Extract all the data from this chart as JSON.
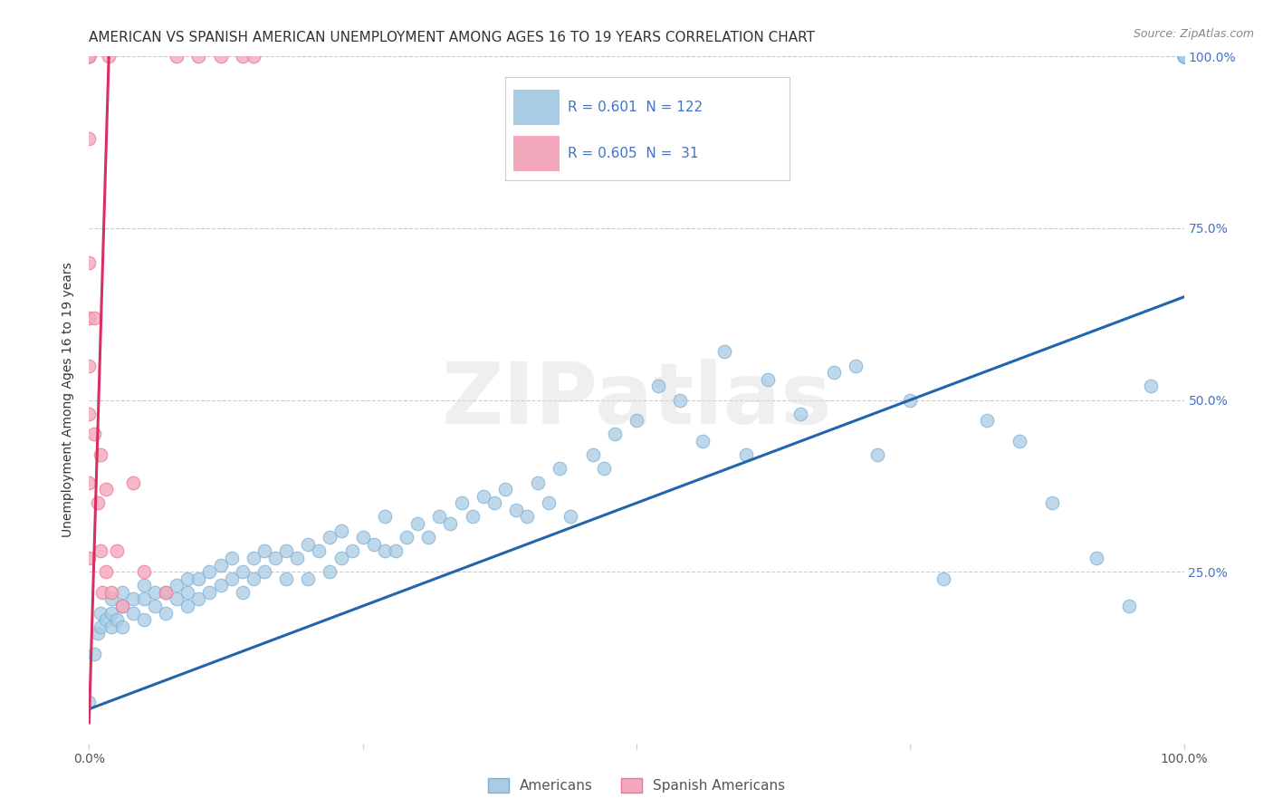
{
  "title": "AMERICAN VS SPANISH AMERICAN UNEMPLOYMENT AMONG AGES 16 TO 19 YEARS CORRELATION CHART",
  "source": "Source: ZipAtlas.com",
  "ylabel": "Unemployment Among Ages 16 to 19 years",
  "xlim": [
    0.0,
    1.0
  ],
  "ylim": [
    0.0,
    1.0
  ],
  "blue_R": 0.601,
  "blue_N": 122,
  "pink_R": 0.605,
  "pink_N": 31,
  "blue_color": "#a8cce4",
  "pink_color": "#f4a8bb",
  "blue_edge_color": "#7bafd4",
  "pink_edge_color": "#e87898",
  "blue_line_color": "#2166ac",
  "pink_line_color": "#d63060",
  "legend_label_blue": "Americans",
  "legend_label_pink": "Spanish Americans",
  "watermark_text": "ZIPatlas",
  "background_color": "#ffffff",
  "grid_color": "#cccccc",
  "title_color": "#333333",
  "source_color": "#888888",
  "tick_color": "#555555",
  "right_tick_color": "#4472c4",
  "legend_text_color": "#4472c4",
  "blue_line_intercept": 0.05,
  "blue_line_slope": 0.6,
  "pink_line_x0": 0.0,
  "pink_line_y0": 0.03,
  "pink_line_x1": 0.018,
  "pink_line_y1": 1.0,
  "blue_x": [
    0.0,
    0.005,
    0.008,
    0.01,
    0.01,
    0.015,
    0.02,
    0.02,
    0.02,
    0.025,
    0.03,
    0.03,
    0.03,
    0.04,
    0.04,
    0.05,
    0.05,
    0.05,
    0.06,
    0.06,
    0.07,
    0.07,
    0.08,
    0.08,
    0.09,
    0.09,
    0.09,
    0.1,
    0.1,
    0.11,
    0.11,
    0.12,
    0.12,
    0.13,
    0.13,
    0.14,
    0.14,
    0.15,
    0.15,
    0.16,
    0.16,
    0.17,
    0.18,
    0.18,
    0.19,
    0.2,
    0.2,
    0.21,
    0.22,
    0.22,
    0.23,
    0.23,
    0.24,
    0.25,
    0.26,
    0.27,
    0.27,
    0.28,
    0.29,
    0.3,
    0.31,
    0.32,
    0.33,
    0.34,
    0.35,
    0.36,
    0.37,
    0.38,
    0.39,
    0.4,
    0.41,
    0.42,
    0.43,
    0.44,
    0.46,
    0.47,
    0.48,
    0.5,
    0.52,
    0.54,
    0.56,
    0.58,
    0.6,
    0.62,
    0.65,
    0.68,
    0.7,
    0.72,
    0.75,
    0.78,
    0.82,
    0.85,
    0.88,
    0.92,
    0.95,
    0.97,
    1.0,
    1.0,
    1.0,
    1.0,
    1.0,
    1.0,
    1.0,
    1.0,
    1.0,
    1.0,
    1.0,
    1.0,
    1.0,
    1.0,
    1.0,
    1.0,
    1.0,
    1.0,
    1.0,
    1.0,
    1.0,
    1.0,
    1.0,
    1.0,
    1.0,
    1.0
  ],
  "blue_y": [
    0.06,
    0.13,
    0.16,
    0.17,
    0.19,
    0.18,
    0.17,
    0.19,
    0.21,
    0.18,
    0.17,
    0.2,
    0.22,
    0.19,
    0.21,
    0.18,
    0.21,
    0.23,
    0.2,
    0.22,
    0.19,
    0.22,
    0.21,
    0.23,
    0.2,
    0.22,
    0.24,
    0.21,
    0.24,
    0.22,
    0.25,
    0.23,
    0.26,
    0.24,
    0.27,
    0.22,
    0.25,
    0.24,
    0.27,
    0.25,
    0.28,
    0.27,
    0.24,
    0.28,
    0.27,
    0.24,
    0.29,
    0.28,
    0.25,
    0.3,
    0.27,
    0.31,
    0.28,
    0.3,
    0.29,
    0.28,
    0.33,
    0.28,
    0.3,
    0.32,
    0.3,
    0.33,
    0.32,
    0.35,
    0.33,
    0.36,
    0.35,
    0.37,
    0.34,
    0.33,
    0.38,
    0.35,
    0.4,
    0.33,
    0.42,
    0.4,
    0.45,
    0.47,
    0.52,
    0.5,
    0.44,
    0.57,
    0.42,
    0.53,
    0.48,
    0.54,
    0.55,
    0.42,
    0.5,
    0.24,
    0.47,
    0.44,
    0.35,
    0.27,
    0.2,
    0.52,
    1.0,
    1.0,
    1.0,
    1.0,
    1.0,
    1.0,
    1.0,
    1.0,
    1.0,
    1.0,
    1.0,
    1.0,
    1.0,
    1.0,
    1.0,
    1.0,
    1.0,
    1.0,
    1.0,
    1.0,
    1.0,
    1.0,
    1.0,
    1.0,
    1.0,
    1.0
  ],
  "pink_x": [
    0.0,
    0.0,
    0.0,
    0.0,
    0.0,
    0.0,
    0.0,
    0.0,
    0.0,
    0.0,
    0.0,
    0.005,
    0.005,
    0.008,
    0.01,
    0.01,
    0.012,
    0.015,
    0.015,
    0.018,
    0.02,
    0.025,
    0.03,
    0.04,
    0.05,
    0.07,
    0.08,
    0.1,
    0.12,
    0.14,
    0.15
  ],
  "pink_y": [
    1.0,
    1.0,
    1.0,
    1.0,
    0.88,
    0.7,
    0.62,
    0.55,
    0.48,
    0.38,
    0.27,
    0.62,
    0.45,
    0.35,
    0.28,
    0.42,
    0.22,
    0.25,
    0.37,
    1.0,
    0.22,
    0.28,
    0.2,
    0.38,
    0.25,
    0.22,
    1.0,
    1.0,
    1.0,
    1.0,
    1.0
  ]
}
